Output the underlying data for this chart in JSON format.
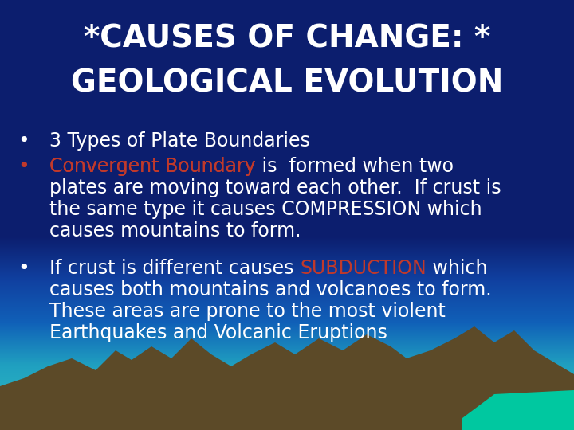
{
  "title_line1": "*CAUSES OF CHANGE: *",
  "title_line2": "GEOLOGICAL EVOLUTION",
  "title_color": "#FFFFFF",
  "title_fontsize": 28,
  "bg_top_color": "#0C1E6E",
  "bullet1": "3 Types of Plate Boundaries",
  "bullet2_red": "Convergent Boundary",
  "bullet2_white": " is  formed when two",
  "bullet2_line2": "plates are moving toward each other.  If crust is",
  "bullet2_line3": "the same type it causes COMPRESSION which",
  "bullet2_line4": "causes mountains to form.",
  "bullet3_pre": "If crust is different causes ",
  "bullet3_red": "SUBDUCTION",
  "bullet3_post": " which",
  "bullet3_line2": "causes both mountains and volcanoes to form.",
  "bullet3_line3": "These areas are prone to the most violent",
  "bullet3_line4": "Earthquakes and Volcanic Eruptions",
  "white": "#FFFFFF",
  "red": "#C0392B",
  "bullet_fontsize": 17,
  "title_bg": "#0C1E6E",
  "mountain_dark": "#5C4A28",
  "mountain_light": "#7A6040",
  "water_teal": "#00C8A0",
  "bg_colors": [
    "#0C1E6E",
    "#0C1E6E",
    "#1040A0",
    "#1060B8",
    "#20A0C0",
    "#30C0C0"
  ],
  "bg_stops": [
    0.0,
    0.55,
    0.65,
    0.75,
    0.85,
    1.0
  ]
}
